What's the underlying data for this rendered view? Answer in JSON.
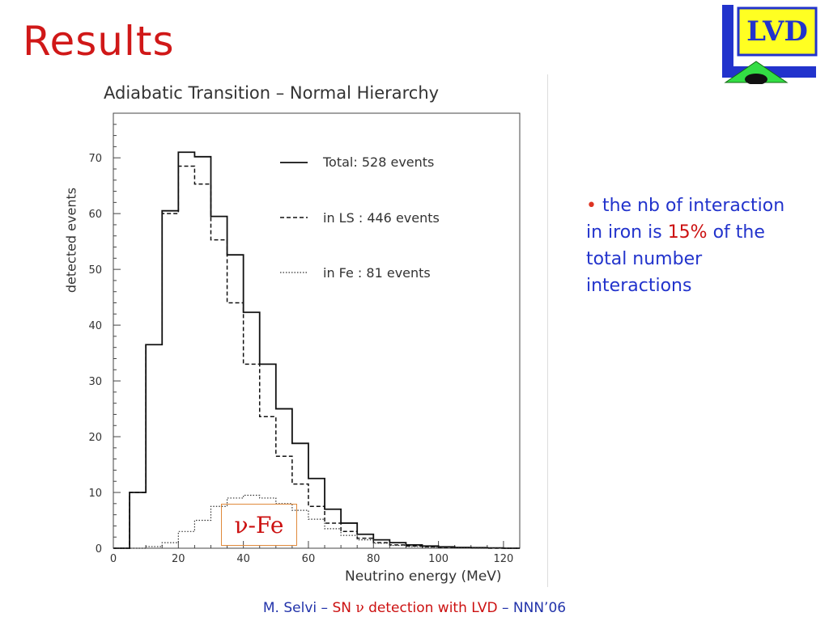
{
  "slide": {
    "title": "Results",
    "logo_text": "LVD",
    "footer": {
      "author": "M. Selvi – ",
      "part1": "SN ",
      "nu": "ν",
      "part2": " detection with LVD",
      "part3": " – NNN’06"
    },
    "bullet": {
      "dot": "•",
      "text_before": " the nb of interaction in iron is ",
      "highlight": "15%",
      "text_after": " of the total number interactions"
    },
    "annotation": "ν-Fe"
  },
  "colors": {
    "title": "#d01818",
    "bullet_text": "#2233cc",
    "highlight": "#cc1111",
    "annotation_border": "#e08a3c"
  },
  "chart_data": {
    "type": "histogram",
    "title": "Adiabatic Transition – Normal Hierarchy",
    "xlabel": "Neutrino energy (MeV)",
    "ylabel": "detected events",
    "xlim": [
      0,
      125
    ],
    "ylim": [
      0,
      78
    ],
    "x_ticks": [
      0,
      20,
      40,
      60,
      80,
      100,
      120
    ],
    "y_ticks": [
      0,
      10,
      20,
      30,
      40,
      50,
      60,
      70
    ],
    "bin_edges": [
      0,
      5,
      10,
      15,
      20,
      25,
      30,
      35,
      40,
      45,
      50,
      55,
      60,
      65,
      70,
      75,
      80,
      85,
      90,
      95,
      100,
      105,
      110,
      115,
      120,
      125
    ],
    "legend": [
      {
        "label": "Total",
        "sep": ": ",
        "events": "528 events",
        "style": "solid"
      },
      {
        "label": "in LS",
        "sep": " : ",
        "events": "446 events",
        "style": "dashed"
      },
      {
        "label": "in Fe",
        "sep": " : ",
        "events": "81 events",
        "style": "dotted"
      }
    ],
    "series": [
      {
        "name": "Total",
        "values": [
          0,
          10,
          36.5,
          60.5,
          71,
          70.2,
          59.5,
          52.6,
          42.3,
          33,
          25,
          18.8,
          12.5,
          7,
          4.5,
          2.5,
          1.5,
          1,
          0.6,
          0.4,
          0.25,
          0.15,
          0.1,
          0.05,
          0
        ]
      },
      {
        "name": "in LS",
        "values": [
          0,
          10,
          36.5,
          60,
          68.5,
          65.3,
          55.3,
          44,
          33,
          23.6,
          16.5,
          11.5,
          7.5,
          4.5,
          3,
          1.8,
          1,
          0.6,
          0.4,
          0.25,
          0.15,
          0.1,
          0.05,
          0,
          0
        ]
      },
      {
        "name": "in Fe",
        "values": [
          0,
          0,
          0.3,
          1,
          3,
          5,
          7.5,
          9,
          9.5,
          9,
          8,
          6.8,
          5.2,
          3.5,
          2.3,
          1.5,
          0.9,
          0.5,
          0.3,
          0.2,
          0.1,
          0.05,
          0,
          0,
          0
        ]
      }
    ]
  }
}
